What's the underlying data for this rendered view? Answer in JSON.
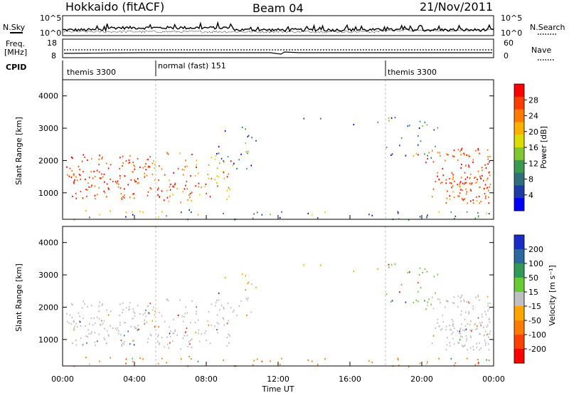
{
  "header": {
    "radar": "Hokkaido (fitACF)",
    "beam": "Beam 04",
    "date": "21/Nov/2011"
  },
  "noise_panel": {
    "left_label": "N.Sky",
    "right_label": "N.Search",
    "left_ticks": [
      "10^5",
      "10^0"
    ],
    "right_ticks": [
      "10^5",
      "10^0"
    ]
  },
  "freq_panel": {
    "left_label_1": "Freq.",
    "left_label_2": "[MHz]",
    "right_label": "Nave",
    "left_ticks": [
      "18",
      "8"
    ],
    "right_ticks": [
      "60",
      "0"
    ]
  },
  "cpid": {
    "label": "CPID",
    "segments": [
      {
        "name": "themis 3300",
        "start_hour": 0
      },
      {
        "name": "normal (fast) 151",
        "start_hour": 5.0
      },
      {
        "name": "themis 3300",
        "start_hour": 18.0
      }
    ]
  },
  "chart_data": [
    {
      "type": "heatmap",
      "title": "",
      "parameter": "Power",
      "colorbar_label": "Power [dB]",
      "colorbar_ticks": [
        "28",
        "24",
        "20",
        "16",
        "12",
        "8",
        "4"
      ],
      "colorbar_colors": [
        "#ff0000",
        "#ff3c00",
        "#ff7a00",
        "#ffb000",
        "#dcdc00",
        "#80c830",
        "#3c9a50",
        "#2f6f7a",
        "#1e3ca8",
        "#0000ff"
      ],
      "xlabel": "Time UT",
      "ylabel": "Slant Range [km]",
      "x_range_hours": [
        0,
        24
      ],
      "ylim": [
        180,
        4500
      ],
      "y_ticks": [
        "1000",
        "2000",
        "3000",
        "4000"
      ],
      "x_ticks": [
        "00:00",
        "04:00",
        "08:00",
        "12:00",
        "16:00",
        "20:00",
        "00:00"
      ]
    },
    {
      "type": "heatmap",
      "title": "",
      "parameter": "Velocity",
      "colorbar_label": "Velocity [m s⁻¹]",
      "colorbar_ticks": [
        "200",
        "100",
        "50",
        "15",
        "-15",
        "-50",
        "-100",
        "-200"
      ],
      "colorbar_colors": [
        "#1a2cc8",
        "#2a6aa0",
        "#2f9a5a",
        "#66cc33",
        "#bfbfbf",
        "#ffa500",
        "#ff7a00",
        "#ff4000",
        "#ff0000"
      ],
      "xlabel": "Time UT",
      "ylabel": "Slant Range [km]",
      "x_range_hours": [
        0,
        24
      ],
      "ylim": [
        180,
        4500
      ],
      "y_ticks": [
        "1000",
        "2000",
        "3000",
        "4000"
      ],
      "x_ticks": [
        "00:00",
        "04:00",
        "08:00",
        "12:00",
        "16:00",
        "20:00",
        "00:00"
      ]
    }
  ],
  "xaxis": {
    "label": "Time UT",
    "ticks": [
      "00:00",
      "04:00",
      "08:00",
      "12:00",
      "16:00",
      "20:00",
      "00:00"
    ]
  }
}
